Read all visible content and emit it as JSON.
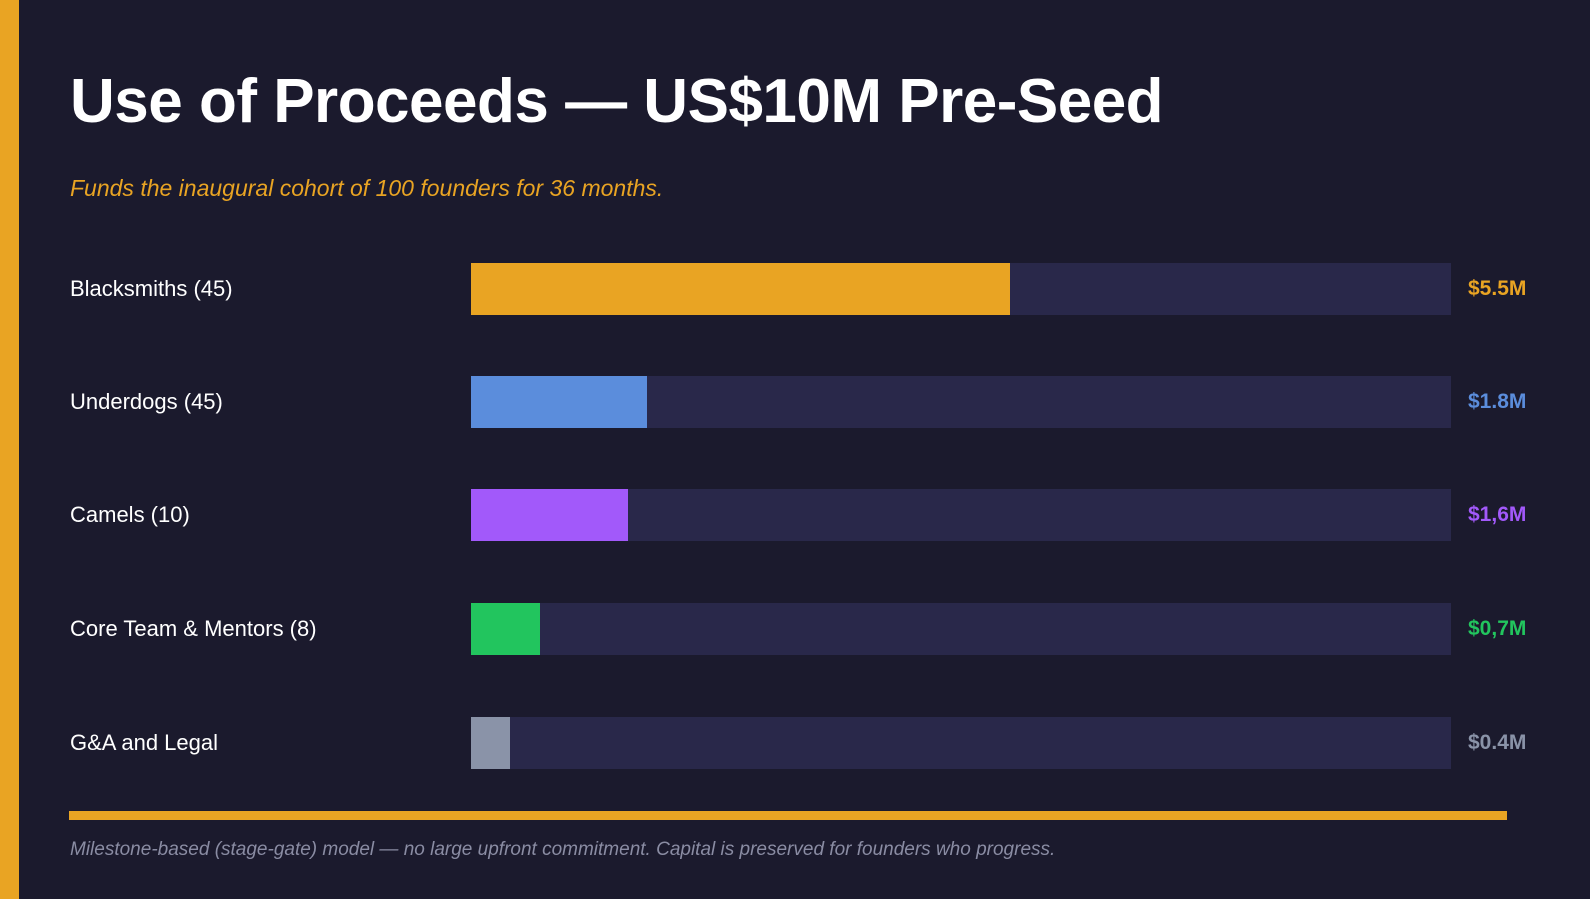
{
  "title": "Use of Proceeds — US$10M Pre-Seed",
  "subtitle": "Funds the inaugural cohort of 100 founders for 36 months.",
  "footnote": "Milestone-based (stage-gate) model — no large upfront commitment. Capital is preserved for founders who progress.",
  "colors": {
    "accent": "#e9a423",
    "background": "#1b1a2d",
    "track": "#29284a"
  },
  "chart_data": {
    "type": "bar",
    "orientation": "horizontal",
    "xlim": [
      0,
      10
    ],
    "unit": "US$M",
    "grid": false,
    "categories": [
      "Blacksmiths (45)",
      "Underdogs (45)",
      "Camels (10)",
      "Core Team & Mentors (8)",
      "G&A and Legal"
    ],
    "values": [
      5.5,
      1.8,
      1.6,
      0.7,
      0.4
    ],
    "data_labels": [
      "$5.5M",
      "$1.8M",
      "$1,6M",
      "$0,7M",
      "$0.4M"
    ],
    "bar_colors": [
      "#e9a423",
      "#5b8ddc",
      "#a259fa",
      "#22c55e",
      "#8a93a8"
    ]
  }
}
